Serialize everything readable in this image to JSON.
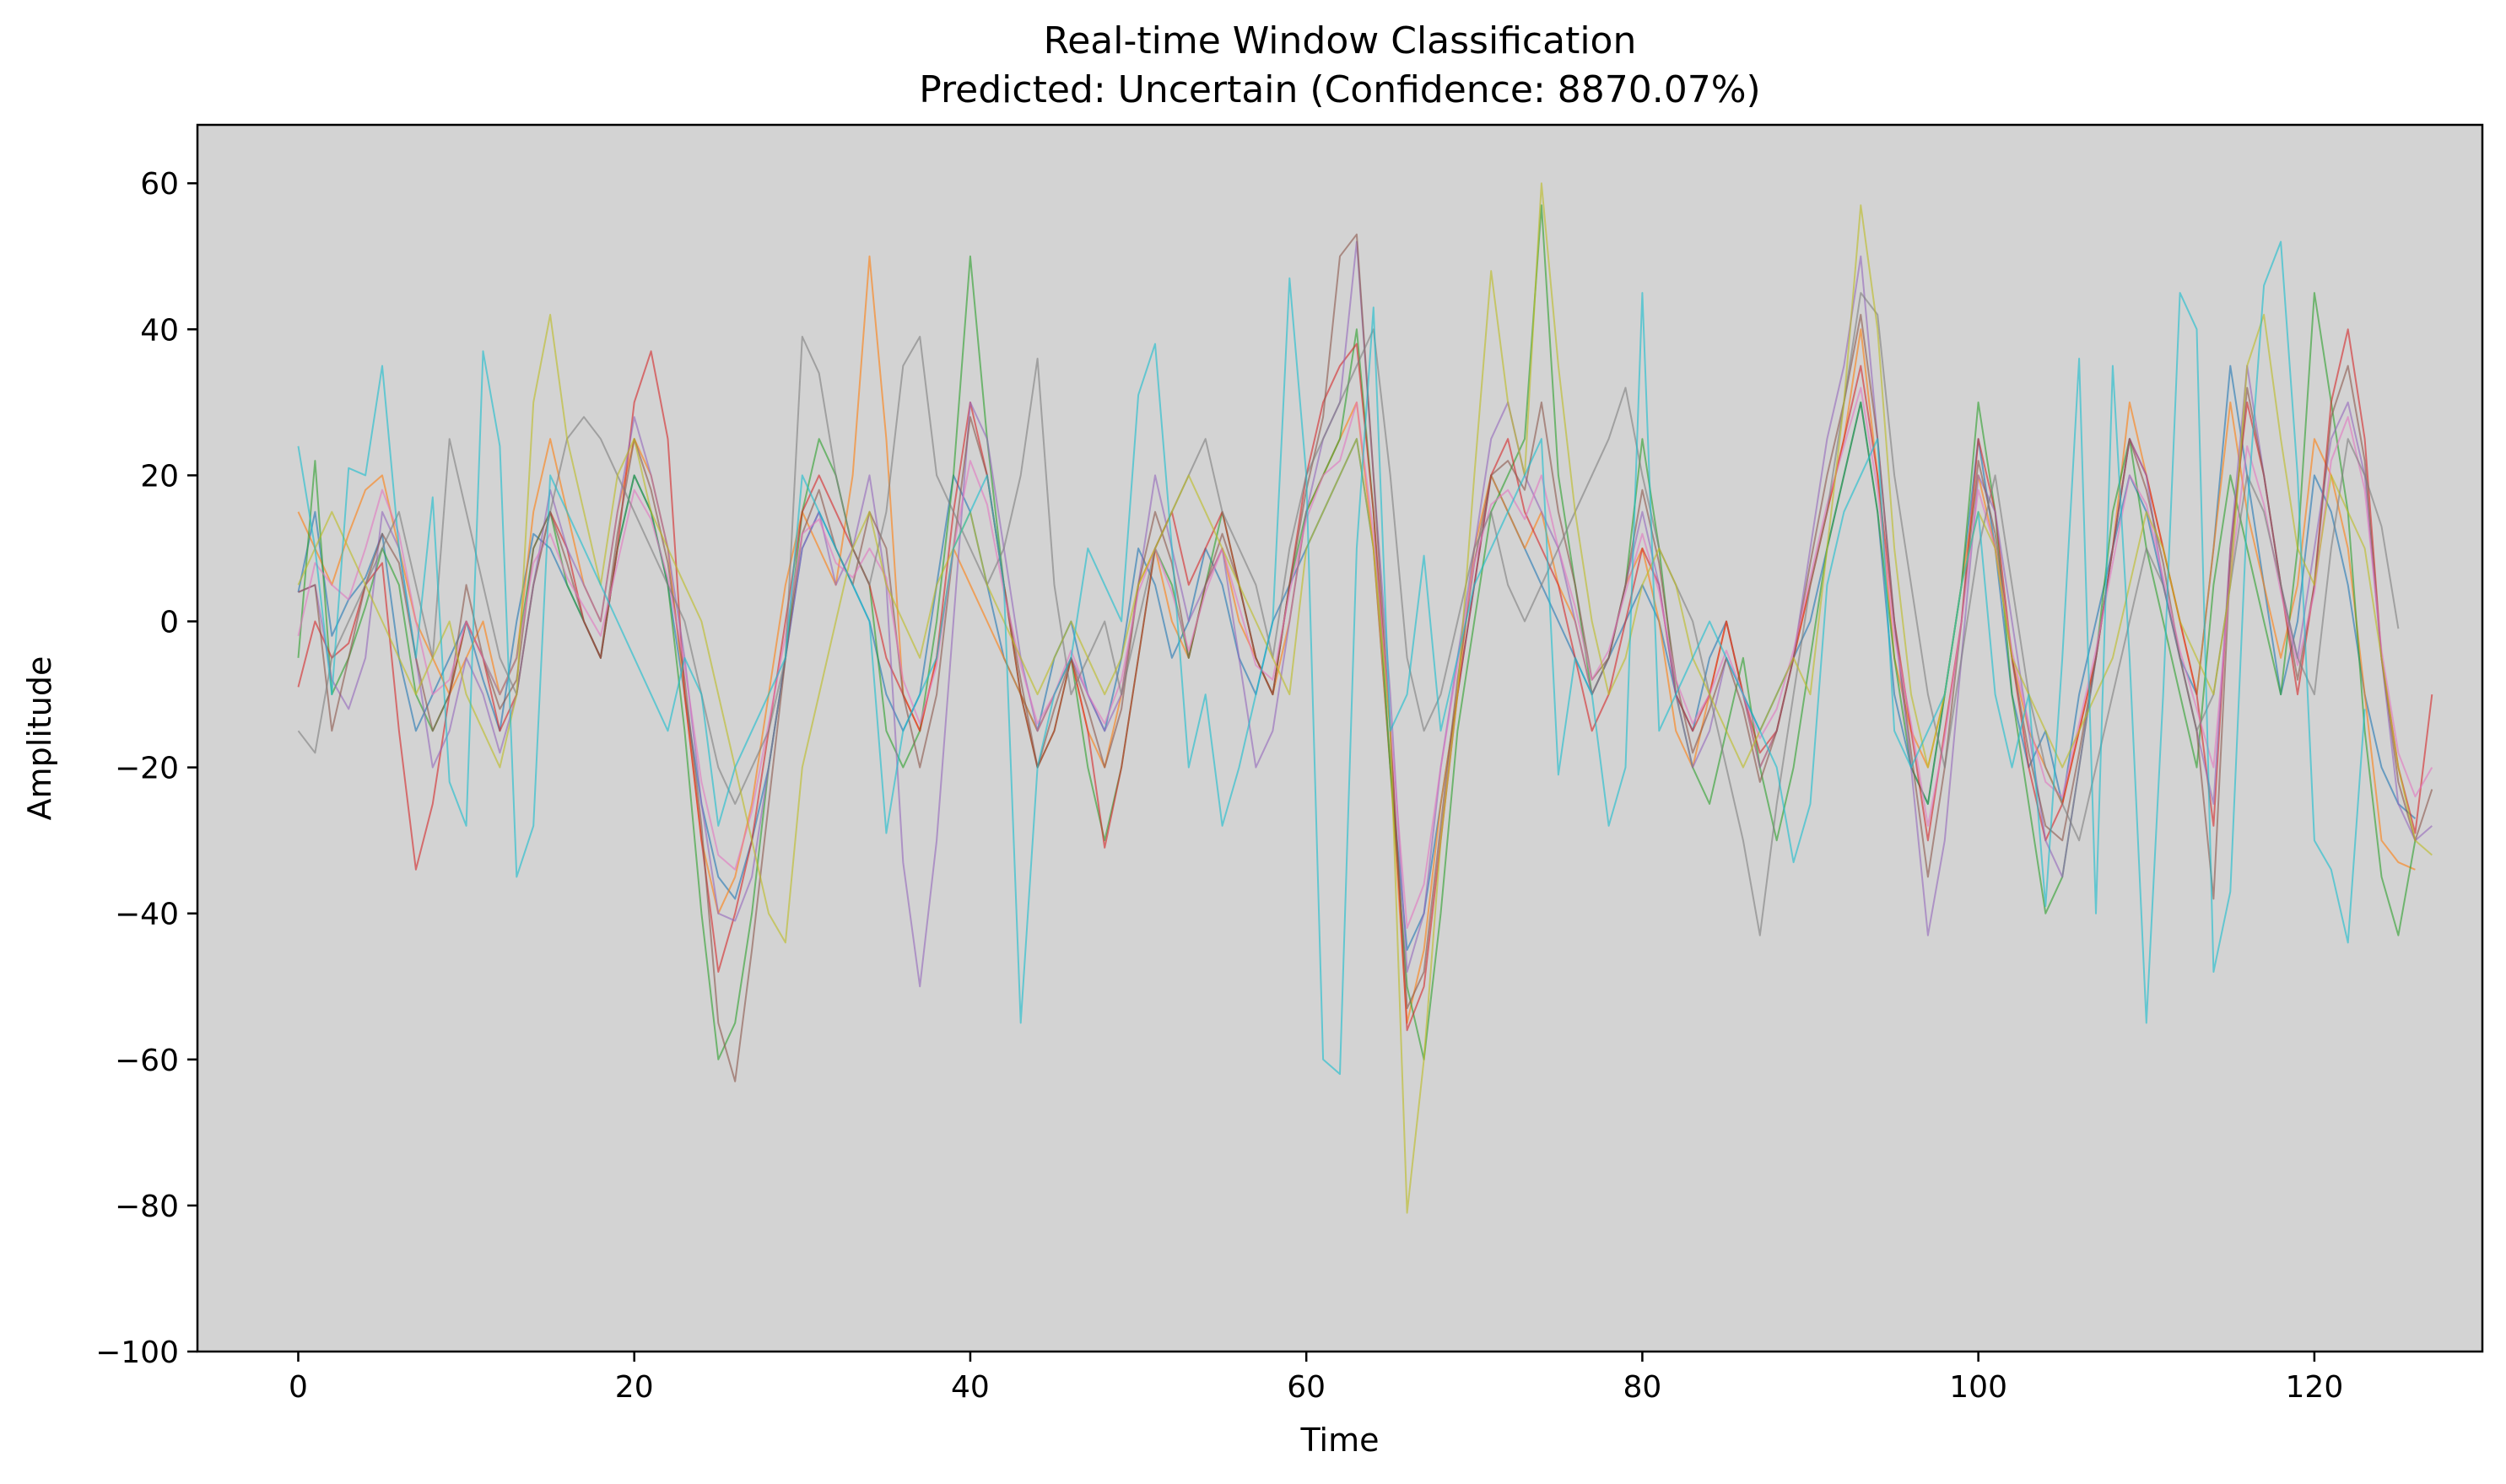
{
  "chart_data": {
    "type": "line",
    "title": "Real-time Window Classification",
    "subtitle": "Predicted: Uncertain (Confidence: 8870.07%)",
    "xlabel": "Time",
    "ylabel": "Amplitude",
    "xlim": [
      -6,
      130
    ],
    "ylim": [
      -100,
      68
    ],
    "xticks": [
      0,
      20,
      40,
      60,
      80,
      100,
      120
    ],
    "xtick_labels": [
      "0",
      "20",
      "40",
      "60",
      "80",
      "100",
      "120"
    ],
    "yticks": [
      -100,
      -80,
      -60,
      -40,
      -20,
      0,
      20,
      40,
      60
    ],
    "ytick_labels": [
      "−100",
      "−80",
      "−60",
      "−40",
      "−20",
      "0",
      "20",
      "40",
      "60"
    ],
    "background": "#d3d3d3",
    "grid": false,
    "legend": "none",
    "n_points": 125,
    "line_alpha": 0.6,
    "series": [
      {
        "color": "#1f77b4",
        "values": [
          4,
          15,
          -2,
          3,
          6,
          12,
          -5,
          -15,
          -10,
          -5,
          0,
          -8,
          -15,
          0,
          12,
          10,
          5,
          0,
          -5,
          10,
          20,
          15,
          5,
          -10,
          -25,
          -35,
          -38,
          -30,
          -20,
          -5,
          10,
          15,
          10,
          5,
          0,
          -10,
          -15,
          -10,
          5,
          20,
          15,
          5,
          -5,
          -10,
          -15,
          -5,
          0,
          -10,
          -15,
          -5,
          10,
          5,
          -5,
          0,
          10,
          5,
          -5,
          -10,
          0,
          5,
          10,
          15,
          20,
          25,
          10,
          -20,
          -45,
          -40,
          -25,
          -10,
          5,
          20,
          15,
          10,
          5,
          0,
          -5,
          -10,
          -5,
          0,
          5,
          0,
          -10,
          -15,
          -5,
          0,
          -10,
          -15,
          -10,
          -5,
          0,
          10,
          20,
          30,
          15,
          -10,
          -20,
          -25,
          -10,
          5,
          25,
          10,
          -10,
          -20,
          -15,
          -25,
          -10,
          0,
          10,
          20,
          15,
          5,
          -5,
          -10,
          10,
          35,
          20,
          5,
          -10,
          0,
          20,
          15,
          5,
          -10,
          -20,
          -25,
          -27
        ]
      },
      {
        "color": "#ff7f0e",
        "values": [
          15,
          10,
          5,
          12,
          18,
          20,
          10,
          0,
          -5,
          -10,
          -5,
          0,
          -10,
          -5,
          15,
          25,
          15,
          5,
          0,
          15,
          25,
          20,
          10,
          -10,
          -30,
          -40,
          -35,
          -25,
          -10,
          5,
          15,
          10,
          5,
          20,
          50,
          25,
          -10,
          -15,
          -5,
          10,
          5,
          0,
          -5,
          -10,
          -15,
          -10,
          -5,
          -15,
          -20,
          -10,
          5,
          10,
          0,
          -5,
          5,
          10,
          0,
          -5,
          -10,
          0,
          15,
          20,
          25,
          30,
          10,
          -20,
          -55,
          -45,
          -25,
          -10,
          10,
          20,
          15,
          10,
          15,
          5,
          0,
          -10,
          -5,
          5,
          10,
          0,
          -15,
          -20,
          -10,
          0,
          -10,
          -20,
          -15,
          -5,
          5,
          15,
          25,
          40,
          20,
          -5,
          -15,
          -20,
          -10,
          5,
          20,
          10,
          -5,
          -15,
          -20,
          -25,
          -15,
          -5,
          10,
          30,
          20,
          10,
          0,
          -10,
          10,
          30,
          15,
          5,
          -5,
          5,
          25,
          20,
          10,
          -10,
          -30,
          -33,
          -34
        ]
      },
      {
        "color": "#2ca02c",
        "values": [
          -5,
          22,
          -10,
          -5,
          2,
          10,
          5,
          -10,
          -15,
          -10,
          0,
          -5,
          -10,
          -5,
          10,
          15,
          5,
          0,
          -5,
          10,
          20,
          15,
          5,
          -15,
          -40,
          -60,
          -55,
          -40,
          -20,
          -5,
          15,
          25,
          20,
          10,
          5,
          -15,
          -20,
          -15,
          0,
          20,
          50,
          25,
          5,
          -10,
          -20,
          -15,
          -5,
          -20,
          -30,
          -20,
          -5,
          10,
          5,
          -5,
          5,
          15,
          5,
          -5,
          -10,
          5,
          15,
          20,
          25,
          40,
          15,
          -20,
          -50,
          -60,
          -40,
          -15,
          0,
          15,
          20,
          25,
          57,
          20,
          5,
          -10,
          -5,
          5,
          25,
          10,
          -10,
          -20,
          -25,
          -15,
          -5,
          -20,
          -30,
          -20,
          -5,
          10,
          20,
          30,
          15,
          -5,
          -20,
          -25,
          -10,
          5,
          30,
          15,
          -10,
          -25,
          -40,
          -35,
          -20,
          -5,
          15,
          25,
          10,
          0,
          -10,
          -20,
          5,
          20,
          10,
          0,
          -10,
          10,
          45,
          30,
          15,
          -15,
          -35,
          -43,
          -30
        ]
      },
      {
        "color": "#d62728",
        "values": [
          -9,
          0,
          -5,
          -3,
          5,
          8,
          -15,
          -34,
          -25,
          -10,
          0,
          -5,
          -15,
          -10,
          5,
          15,
          10,
          0,
          -5,
          10,
          30,
          37,
          25,
          -10,
          -30,
          -48,
          -40,
          -30,
          -15,
          0,
          15,
          20,
          15,
          10,
          5,
          -5,
          -10,
          -15,
          -5,
          15,
          30,
          20,
          5,
          -10,
          -20,
          -15,
          -5,
          -15,
          -31,
          -20,
          -5,
          10,
          15,
          5,
          10,
          15,
          5,
          -5,
          -10,
          5,
          20,
          30,
          35,
          38,
          15,
          -15,
          -56,
          -50,
          -30,
          -10,
          5,
          20,
          25,
          15,
          10,
          5,
          -5,
          -15,
          -10,
          0,
          10,
          5,
          -10,
          -15,
          -10,
          0,
          -10,
          -18,
          -15,
          -5,
          5,
          15,
          25,
          35,
          20,
          0,
          -15,
          -30,
          -15,
          0,
          25,
          15,
          -5,
          -20,
          -30,
          -25,
          -15,
          -5,
          10,
          25,
          20,
          10,
          0,
          -10,
          -28,
          10,
          30,
          20,
          5,
          -10,
          5,
          30,
          40,
          25,
          -5,
          -20,
          -29,
          -10
        ]
      },
      {
        "color": "#9467bd",
        "values": [
          4,
          5,
          -8,
          -12,
          -5,
          15,
          10,
          -5,
          -20,
          -15,
          -5,
          -10,
          -18,
          -10,
          5,
          18,
          10,
          5,
          0,
          15,
          28,
          20,
          10,
          -5,
          -25,
          -40,
          -41,
          -35,
          -20,
          -5,
          10,
          15,
          5,
          10,
          20,
          5,
          -33,
          -50,
          -30,
          0,
          30,
          25,
          10,
          -5,
          -15,
          -10,
          -5,
          -10,
          -15,
          -10,
          5,
          20,
          10,
          0,
          5,
          10,
          -5,
          -20,
          -15,
          0,
          15,
          25,
          30,
          52,
          20,
          -10,
          -48,
          -40,
          -20,
          -5,
          10,
          25,
          30,
          20,
          15,
          10,
          0,
          -10,
          -5,
          5,
          15,
          5,
          -10,
          -20,
          -15,
          -5,
          -10,
          -20,
          -15,
          -5,
          10,
          25,
          35,
          50,
          25,
          0,
          -20,
          -43,
          -30,
          -5,
          20,
          15,
          0,
          -15,
          -30,
          -35,
          -20,
          -5,
          10,
          25,
          20,
          5,
          -5,
          -15,
          -25,
          10,
          35,
          20,
          5,
          -5,
          10,
          25,
          30,
          20,
          -5,
          -25,
          -30,
          -28
        ]
      },
      {
        "color": "#8c564b",
        "values": [
          4,
          5,
          -15,
          -5,
          5,
          12,
          8,
          -5,
          -15,
          -10,
          5,
          -5,
          -12,
          -8,
          10,
          15,
          8,
          0,
          -5,
          12,
          25,
          18,
          8,
          -8,
          -28,
          -55,
          -63,
          -45,
          -25,
          -5,
          12,
          18,
          10,
          5,
          15,
          10,
          -10,
          -20,
          -10,
          10,
          28,
          20,
          5,
          -8,
          -20,
          -12,
          -5,
          -12,
          -20,
          -12,
          5,
          15,
          8,
          -5,
          5,
          12,
          5,
          -5,
          -10,
          5,
          18,
          28,
          50,
          53,
          20,
          -15,
          -53,
          -48,
          -28,
          -8,
          8,
          20,
          22,
          18,
          30,
          15,
          5,
          -8,
          -5,
          5,
          18,
          8,
          -8,
          -18,
          -12,
          -5,
          -12,
          -22,
          -15,
          -5,
          8,
          20,
          30,
          42,
          25,
          0,
          -18,
          -35,
          -20,
          0,
          22,
          12,
          -5,
          -18,
          -28,
          -30,
          -18,
          -5,
          10,
          25,
          18,
          8,
          -5,
          -15,
          -38,
          8,
          32,
          20,
          5,
          -8,
          5,
          28,
          35,
          22,
          -5,
          -22,
          -30,
          -23
        ]
      },
      {
        "color": "#e377c2",
        "values": [
          -2,
          8,
          5,
          3,
          10,
          18,
          12,
          0,
          -10,
          -8,
          0,
          -5,
          -10,
          -5,
          8,
          12,
          6,
          2,
          -2,
          8,
          18,
          14,
          6,
          -6,
          -22,
          -32,
          -34,
          -26,
          -14,
          -2,
          12,
          14,
          8,
          6,
          10,
          6,
          -8,
          -14,
          -6,
          10,
          22,
          16,
          4,
          -6,
          -14,
          -10,
          -4,
          -10,
          -14,
          -8,
          4,
          10,
          4,
          -4,
          4,
          10,
          2,
          -6,
          -8,
          4,
          14,
          20,
          22,
          30,
          12,
          -14,
          -42,
          -36,
          -20,
          -6,
          8,
          16,
          18,
          14,
          20,
          10,
          2,
          -8,
          -4,
          4,
          12,
          4,
          -8,
          -14,
          -10,
          -4,
          -10,
          -16,
          -12,
          -4,
          6,
          16,
          24,
          32,
          18,
          -2,
          -14,
          -28,
          -16,
          0,
          18,
          10,
          -4,
          -14,
          -22,
          -24,
          -14,
          -4,
          8,
          20,
          16,
          6,
          -4,
          -12,
          -20,
          6,
          24,
          16,
          4,
          -6,
          4,
          22,
          28,
          18,
          -4,
          -18,
          -24,
          -20
        ]
      },
      {
        "color": "#7f7f7f",
        "values": [
          -15,
          -18,
          -5,
          0,
          5,
          10,
          15,
          5,
          -5,
          25,
          15,
          5,
          -5,
          -10,
          5,
          15,
          25,
          28,
          25,
          20,
          15,
          10,
          5,
          0,
          -10,
          -20,
          -25,
          -20,
          -15,
          -5,
          39,
          34,
          20,
          10,
          5,
          15,
          35,
          39,
          20,
          15,
          10,
          5,
          10,
          20,
          36,
          5,
          -10,
          -5,
          0,
          -10,
          0,
          10,
          15,
          20,
          25,
          15,
          10,
          5,
          -5,
          10,
          20,
          25,
          30,
          35,
          40,
          20,
          -5,
          -15,
          -10,
          0,
          10,
          15,
          5,
          0,
          5,
          10,
          15,
          20,
          25,
          32,
          20,
          10,
          5,
          0,
          -10,
          -20,
          -30,
          -43,
          -25,
          -10,
          5,
          15,
          30,
          45,
          42,
          20,
          5,
          -10,
          -20,
          -5,
          10,
          20,
          5,
          -10,
          -20,
          -25,
          -30,
          -20,
          -10,
          0,
          10,
          5,
          -5,
          -15,
          -10,
          5,
          20,
          15,
          5,
          -5,
          -10,
          10,
          25,
          20,
          13,
          -1
        ]
      },
      {
        "color": "#bcbd22",
        "values": [
          5,
          10,
          15,
          10,
          5,
          0,
          -5,
          -10,
          -5,
          0,
          -10,
          -15,
          -20,
          -10,
          30,
          42,
          25,
          15,
          5,
          20,
          25,
          15,
          10,
          5,
          0,
          -10,
          -20,
          -30,
          -40,
          -44,
          -20,
          -10,
          0,
          10,
          15,
          5,
          0,
          -5,
          5,
          10,
          15,
          5,
          0,
          -5,
          -10,
          -5,
          0,
          -5,
          -10,
          -5,
          5,
          10,
          15,
          20,
          15,
          10,
          5,
          0,
          -5,
          -10,
          10,
          15,
          20,
          25,
          10,
          -15,
          -81,
          -60,
          -30,
          -10,
          20,
          48,
          30,
          20,
          60,
          35,
          15,
          0,
          -10,
          -5,
          5,
          10,
          5,
          -5,
          -10,
          -15,
          -20,
          -15,
          -10,
          -5,
          -10,
          10,
          30,
          57,
          40,
          10,
          -10,
          -20,
          -10,
          5,
          15,
          10,
          -5,
          -10,
          -15,
          -20,
          -15,
          -10,
          -5,
          5,
          15,
          10,
          0,
          -5,
          -10,
          5,
          35,
          42,
          25,
          10,
          5,
          20,
          15,
          10,
          -5,
          -20,
          -30,
          -32
        ]
      },
      {
        "color": "#17becf",
        "values": [
          24,
          10,
          -10,
          21,
          20,
          35,
          10,
          -5,
          17,
          -22,
          -28,
          37,
          24,
          -35,
          -28,
          20,
          15,
          10,
          5,
          0,
          -5,
          -10,
          -15,
          -5,
          -10,
          -28,
          -20,
          -15,
          -10,
          -5,
          20,
          15,
          10,
          5,
          0,
          -29,
          -15,
          -10,
          -5,
          10,
          15,
          20,
          5,
          -55,
          -20,
          -10,
          -5,
          10,
          5,
          0,
          31,
          38,
          10,
          -20,
          -10,
          -28,
          -20,
          -10,
          0,
          47,
          20,
          -60,
          -62,
          10,
          43,
          -15,
          -10,
          9,
          -15,
          -5,
          5,
          10,
          15,
          20,
          25,
          -21,
          -5,
          -10,
          -28,
          -20,
          45,
          -15,
          -10,
          -5,
          0,
          -5,
          -10,
          -15,
          -20,
          -33,
          -25,
          5,
          15,
          20,
          25,
          -15,
          -20,
          -15,
          -10,
          5,
          15,
          -10,
          -20,
          -10,
          -39,
          -5,
          36,
          -40,
          35,
          -5,
          -55,
          -10,
          45,
          40,
          -48,
          -37,
          15,
          46,
          52,
          20,
          -30,
          -34,
          -44,
          -12
        ]
      }
    ]
  }
}
